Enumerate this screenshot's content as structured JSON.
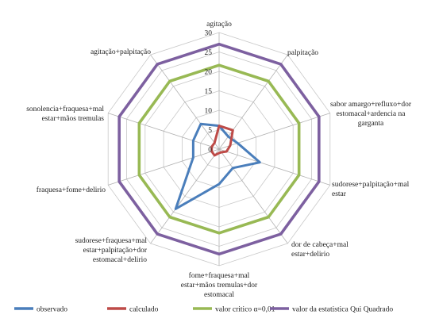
{
  "chart_data": {
    "type": "radar",
    "categories": [
      "agitação",
      "palpitação",
      "sabor amargo+refluxo+dor estomacal+ardencia na garganta",
      "sudorese+palpitação+mal estar",
      "dor de cabeça+mal estar+delirio",
      "fome+fraquesa+mal estar+mãos tremulas+dor estomacal",
      "sudorese+fraquesa+mal estar+palpitação+dor estomacal+delirio",
      "fraquesa+fome+delirio",
      "sonolencia+fraquesa+mal estar+mãos tremulas",
      "agitação+palpitação"
    ],
    "rlim": [
      0,
      30
    ],
    "ticks": [
      "0",
      "5",
      "10",
      "15",
      "20",
      "25",
      "30"
    ],
    "grid": true,
    "legend_position": "bottom",
    "series": [
      {
        "name": "observado",
        "color": "#4a7ebb",
        "values": [
          6,
          4,
          5,
          11,
          6,
          9,
          19,
          7,
          7,
          8
        ]
      },
      {
        "name": "calculado",
        "color": "#be4b48",
        "values": [
          6,
          6,
          3,
          2,
          1,
          1,
          2,
          2,
          2,
          2
        ]
      },
      {
        "name": "valor critico α=0,01",
        "color": "#98b954",
        "values": [
          21.6,
          21.6,
          21.6,
          21.6,
          21.6,
          21.6,
          21.6,
          21.6,
          21.6,
          21.6
        ]
      },
      {
        "name": "valor da estatistica Qui Quadrado",
        "color": "#7d60a0",
        "values": [
          27,
          27,
          27,
          27,
          27,
          27,
          27,
          27,
          27,
          27
        ]
      }
    ]
  }
}
